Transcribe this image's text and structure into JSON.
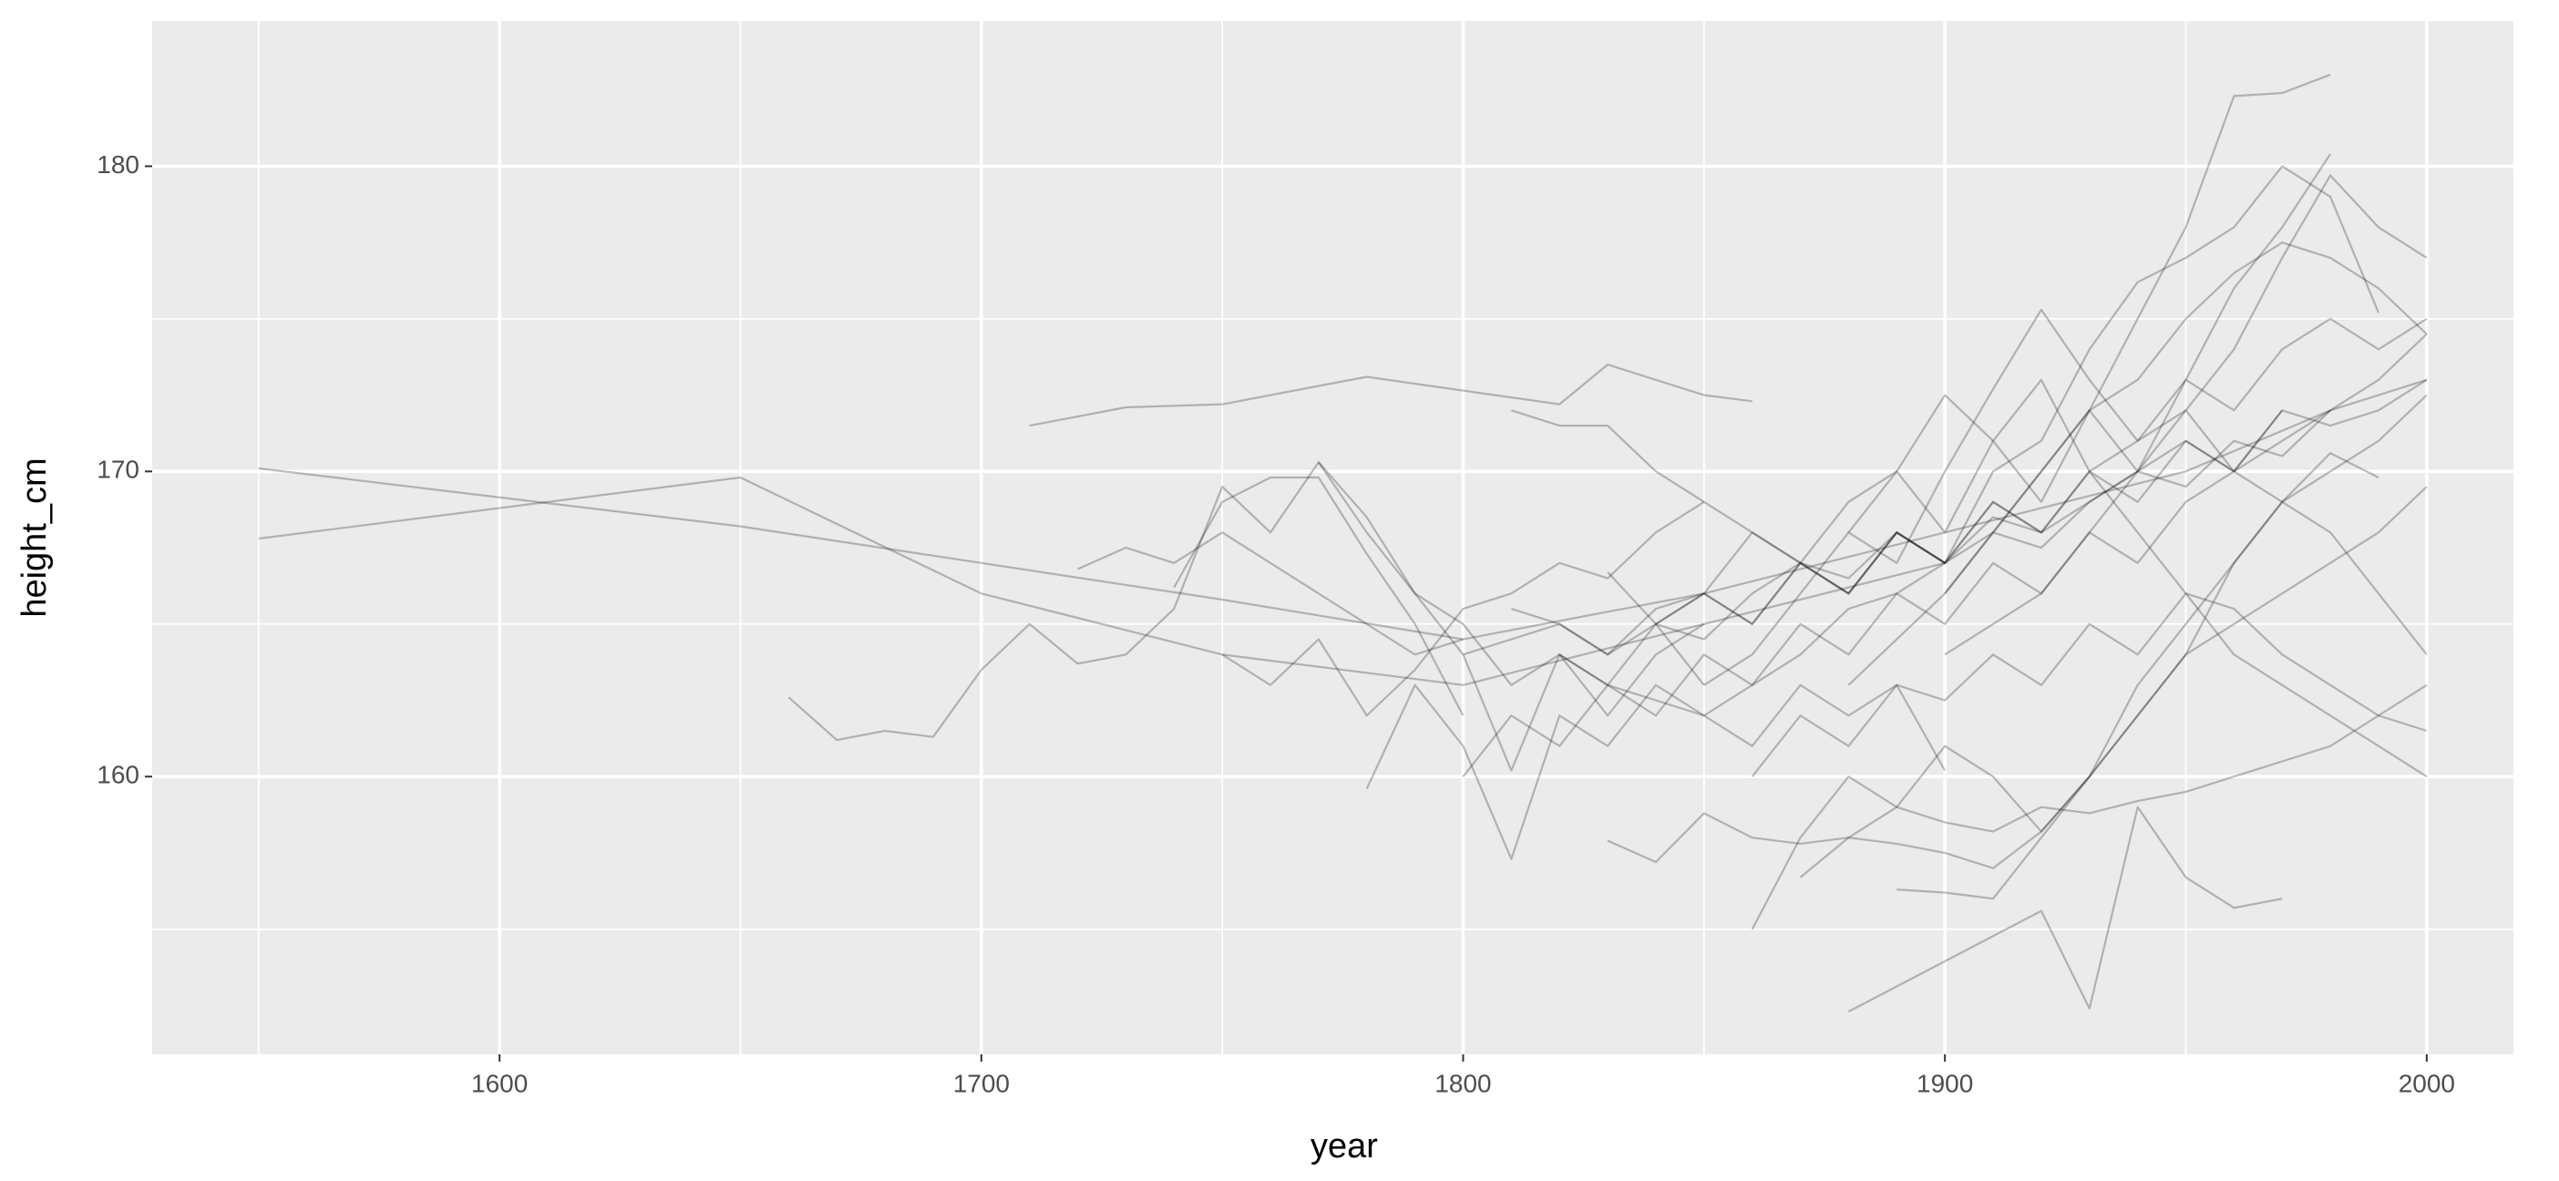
{
  "chart_data": {
    "type": "line",
    "x_label": "year",
    "y_label": "height_cm",
    "xlim": [
      1527.9,
      2018
    ],
    "ylim": [
      150.9,
      184.76
    ],
    "xticks": [
      1600,
      1700,
      1800,
      1900,
      2000
    ],
    "yticks": [
      160,
      170,
      180
    ],
    "xminor": [
      1550,
      1650,
      1750,
      1850,
      1950
    ],
    "yminor": [
      155,
      165,
      175
    ],
    "grid": true,
    "series": [
      {
        "color": "rgba(0,0,0,0.25)",
        "x": [
          1550,
          1650,
          1750,
          1800,
          1850,
          1900,
          1950,
          1980
        ],
        "values": [
          170.1,
          168.2,
          165.8,
          164.5,
          166,
          168,
          170,
          172
        ]
      },
      {
        "color": "rgba(0,0,0,0.25)",
        "x": [
          1550,
          1650,
          1700,
          1750,
          1800,
          1850,
          1900
        ],
        "values": [
          167.8,
          169.8,
          166,
          164,
          163,
          165,
          167
        ]
      },
      {
        "color": "rgba(0,0,0,0.25)",
        "x": [
          1660,
          1670,
          1680,
          1690,
          1700,
          1710,
          1720
        ],
        "values": [
          162.6,
          161.2,
          161.5,
          161.3,
          163.5,
          165,
          163.7
        ]
      },
      {
        "color": "rgba(0,0,0,0.25)",
        "x": [
          1710,
          1730,
          1750,
          1780,
          1820,
          1830,
          1850,
          1860
        ],
        "values": [
          171.5,
          172.1,
          172.2,
          173.1,
          172.2,
          173.5,
          172.5,
          172.3
        ]
      },
      {
        "color": "rgba(0,0,0,0.25)",
        "x": [
          1880,
          1900,
          1910,
          1920,
          1930,
          1940,
          1950,
          1960,
          1970,
          1980
        ],
        "values": [
          163,
          166,
          168,
          170,
          172,
          175,
          178,
          182.3,
          182.4,
          183
        ]
      },
      {
        "color": "rgba(0,0,0,0.25)",
        "x": [
          1880,
          1920,
          1930,
          1940,
          1950,
          1960,
          1970
        ],
        "values": [
          152.3,
          155.6,
          152.4,
          159,
          156.7,
          155.7,
          156
        ]
      },
      {
        "color": "rgba(0,0,0,0.25)",
        "x": [
          1860,
          1870,
          1880,
          1890,
          1900,
          1910,
          1920,
          1930,
          1940,
          1950,
          1960,
          1970,
          1980,
          1990,
          2000
        ],
        "values": [
          155,
          158,
          160,
          159,
          161,
          160,
          158.2,
          160,
          163,
          165,
          167,
          169,
          170,
          171,
          172.5
        ]
      },
      {
        "color": "rgba(0,0,0,0.25)",
        "x": [
          1800,
          1810,
          1820,
          1830,
          1840,
          1850,
          1860,
          1870,
          1880,
          1890,
          1900,
          1910,
          1920,
          1930,
          1940,
          1950,
          1960,
          1970,
          1980,
          1990,
          2000
        ],
        "values": [
          164,
          164.5,
          165,
          164,
          165.5,
          166,
          165,
          167,
          166.5,
          168,
          167,
          168.5,
          168,
          169,
          170,
          169.5,
          171,
          170.5,
          172,
          172.5,
          173
        ]
      },
      {
        "color": "rgba(0,0,0,0.25)",
        "x": [
          1810,
          1820,
          1830,
          1840,
          1850,
          1860,
          1870,
          1880,
          1890,
          1900,
          1910,
          1920,
          1930,
          1940,
          1950,
          1960,
          1970,
          1980
        ],
        "values": [
          165.5,
          165,
          164,
          165,
          164.5,
          166,
          167,
          166,
          168,
          167,
          169,
          168,
          170,
          171,
          173,
          176,
          178,
          180.4
        ]
      },
      {
        "color": "rgba(0,0,0,0.25)",
        "x": [
          1800,
          1810,
          1820,
          1830,
          1840,
          1850,
          1860,
          1870,
          1880,
          1890,
          1900,
          1910,
          1920,
          1930,
          1940,
          1950,
          1960,
          1970,
          1980,
          1990,
          2000
        ],
        "values": [
          160,
          162,
          161,
          163,
          162,
          164,
          163,
          165,
          164,
          166,
          165,
          167,
          166,
          168,
          167,
          169,
          170,
          171,
          172,
          173,
          174.5
        ]
      },
      {
        "color": "rgba(0,0,0,0.25)",
        "x": [
          1720,
          1730,
          1740,
          1750,
          1760,
          1770,
          1780,
          1790,
          1800,
          1810,
          1820,
          1830,
          1840,
          1850
        ],
        "values": [
          163.7,
          164,
          165.5,
          169.5,
          168,
          170.3,
          168.5,
          166,
          165,
          163,
          164,
          162,
          164,
          165
        ]
      },
      {
        "color": "rgba(0,0,0,0.25)",
        "x": [
          1740,
          1750,
          1760,
          1770,
          1780,
          1790,
          1800
        ],
        "values": [
          166.2,
          169,
          169.8,
          169.8,
          167.3,
          165,
          162
        ]
      },
      {
        "color": "rgba(0,0,0,0.25)",
        "x": [
          1770,
          1780,
          1790,
          1800,
          1810,
          1820,
          1830,
          1840,
          1850
        ],
        "values": [
          170.3,
          168,
          166,
          164,
          160.2,
          164,
          163,
          165,
          163
        ]
      },
      {
        "color": "rgba(0,0,0,0.25)",
        "x": [
          1780,
          1790,
          1800,
          1810,
          1820,
          1830,
          1840,
          1850,
          1860,
          1870,
          1880,
          1890,
          1900
        ],
        "values": [
          159.6,
          163,
          161,
          157.3,
          162,
          161,
          163,
          162,
          161,
          163,
          162,
          163,
          160.2
        ]
      },
      {
        "color": "rgba(0,0,0,0.25)",
        "x": [
          1830,
          1840,
          1850,
          1860,
          1870,
          1880,
          1890,
          1900,
          1910,
          1920,
          1930,
          1940,
          1950,
          1960,
          1970,
          1980,
          1990,
          2000
        ],
        "values": [
          157.9,
          157.2,
          158.8,
          158,
          157.8,
          158,
          159,
          158.5,
          158.2,
          159,
          158.8,
          159.2,
          159.5,
          160,
          160.5,
          161,
          162,
          163
        ]
      },
      {
        "color": "rgba(0,0,0,0.25)",
        "x": [
          1850,
          1860,
          1870,
          1880,
          1890,
          1900,
          1910,
          1920,
          1930,
          1940,
          1950,
          1960,
          1970,
          1980,
          1990,
          2000
        ],
        "values": [
          163,
          164,
          166,
          168,
          167,
          170,
          172.7,
          175.3,
          173,
          171,
          172,
          170,
          169,
          168,
          166,
          164
        ]
      },
      {
        "color": "rgba(0,0,0,0.25)",
        "x": [
          1810,
          1820,
          1830,
          1840,
          1850,
          1860,
          1870,
          1880,
          1890,
          1900,
          1910,
          1920,
          1930,
          1940,
          1950,
          1960,
          1970,
          1980,
          1990
        ],
        "values": [
          172,
          171.5,
          171.5,
          170,
          169,
          168,
          167,
          166,
          168,
          167,
          170,
          171,
          174,
          176.2,
          177,
          178,
          180,
          179,
          175.2
        ]
      },
      {
        "color": "rgba(0,0,0,0.25)",
        "x": [
          1820,
          1830,
          1840,
          1850,
          1860,
          1870,
          1880,
          1890,
          1900,
          1910,
          1920,
          1930,
          1940,
          1950,
          1960,
          1970,
          1980,
          1990,
          2000
        ],
        "values": [
          164,
          163,
          162.5,
          162,
          163,
          164,
          165.5,
          166,
          167,
          168,
          167.5,
          169,
          170,
          171,
          170,
          172,
          171.5,
          172,
          173
        ]
      },
      {
        "color": "rgba(0,0,0,0.25)",
        "x": [
          1840,
          1850,
          1860,
          1870,
          1880,
          1890,
          1900,
          1910,
          1920,
          1930,
          1940,
          1950,
          1960,
          1970,
          1980,
          1990,
          2000
        ],
        "values": [
          165,
          166,
          168,
          167,
          169,
          170,
          168,
          171,
          169,
          172,
          170,
          173,
          172,
          174,
          175,
          174,
          175
        ]
      },
      {
        "color": "rgba(0,0,0,0.25)",
        "x": [
          1890,
          1900,
          1910,
          1920,
          1930,
          1940,
          1950,
          1960,
          1970,
          1980,
          1990,
          2000
        ],
        "values": [
          156.3,
          156.2,
          156,
          158,
          160,
          162,
          164,
          165,
          166,
          167,
          168,
          169.5
        ]
      },
      {
        "color": "rgba(0,0,0,0.25)",
        "x": [
          1900,
          1910,
          1920,
          1930,
          1940,
          1950,
          1960,
          1970,
          1980,
          1990,
          2000
        ],
        "values": [
          164,
          165,
          166,
          168,
          170,
          172,
          174,
          177,
          179.7,
          178,
          177
        ]
      },
      {
        "color": "rgba(0,0,0,0.25)",
        "x": [
          1860,
          1870,
          1880,
          1890,
          1900,
          1910,
          1920,
          1930,
          1940,
          1950,
          1960,
          1970,
          1980,
          1990,
          2000
        ],
        "values": [
          160,
          162,
          161,
          163,
          162.5,
          164,
          163,
          165,
          164,
          166,
          165.5,
          164,
          163,
          162,
          161.5
        ]
      },
      {
        "color": "rgba(0,0,0,0.25)",
        "x": [
          1870,
          1880,
          1890,
          1900,
          1910,
          1920,
          1930,
          1940,
          1950,
          1960,
          1970,
          1980,
          1990
        ],
        "values": [
          156.7,
          158,
          157.8,
          157.5,
          157,
          158.2,
          160,
          162,
          164,
          167,
          169,
          170.6,
          169.8
        ]
      },
      {
        "color": "rgba(0,0,0,0.25)",
        "x": [
          1750,
          1760,
          1770,
          1780,
          1790,
          1800,
          1810,
          1820,
          1830,
          1840,
          1850
        ],
        "values": [
          164,
          163,
          164.5,
          162,
          163.5,
          165.5,
          166,
          167,
          166.5,
          168,
          169
        ]
      },
      {
        "color": "rgba(0,0,0,0.25)",
        "x": [
          1720,
          1730,
          1740,
          1750,
          1760,
          1770,
          1780,
          1790,
          1800
        ],
        "values": [
          166.8,
          167.5,
          167,
          168,
          167,
          166,
          165,
          164,
          164.5
        ]
      },
      {
        "color": "rgba(0,0,0,0.25)",
        "x": [
          1900,
          1910,
          1920,
          1930,
          1940,
          1950,
          1960,
          1970,
          1980,
          1990,
          2000
        ],
        "values": [
          166,
          168,
          170,
          172,
          173,
          175,
          176.5,
          177.5,
          177,
          176,
          174.5
        ]
      },
      {
        "color": "rgba(0,0,0,0.25)",
        "x": [
          1830,
          1840,
          1850,
          1860,
          1870,
          1880,
          1890,
          1900,
          1910,
          1920,
          1930,
          1940,
          1950,
          1960,
          1970
        ],
        "values": [
          166.7,
          165,
          166,
          165,
          167,
          166,
          168,
          167,
          169,
          168,
          170,
          169,
          171,
          170,
          172
        ]
      },
      {
        "color": "rgba(0,0,0,0.25)",
        "x": [
          1880,
          1890,
          1900,
          1910,
          1920,
          1930,
          1940,
          1950,
          1960,
          1970,
          1980,
          1990,
          2000
        ],
        "values": [
          168,
          170,
          172.5,
          171,
          173,
          170,
          168,
          166,
          164,
          163,
          162,
          161,
          160
        ]
      }
    ]
  }
}
